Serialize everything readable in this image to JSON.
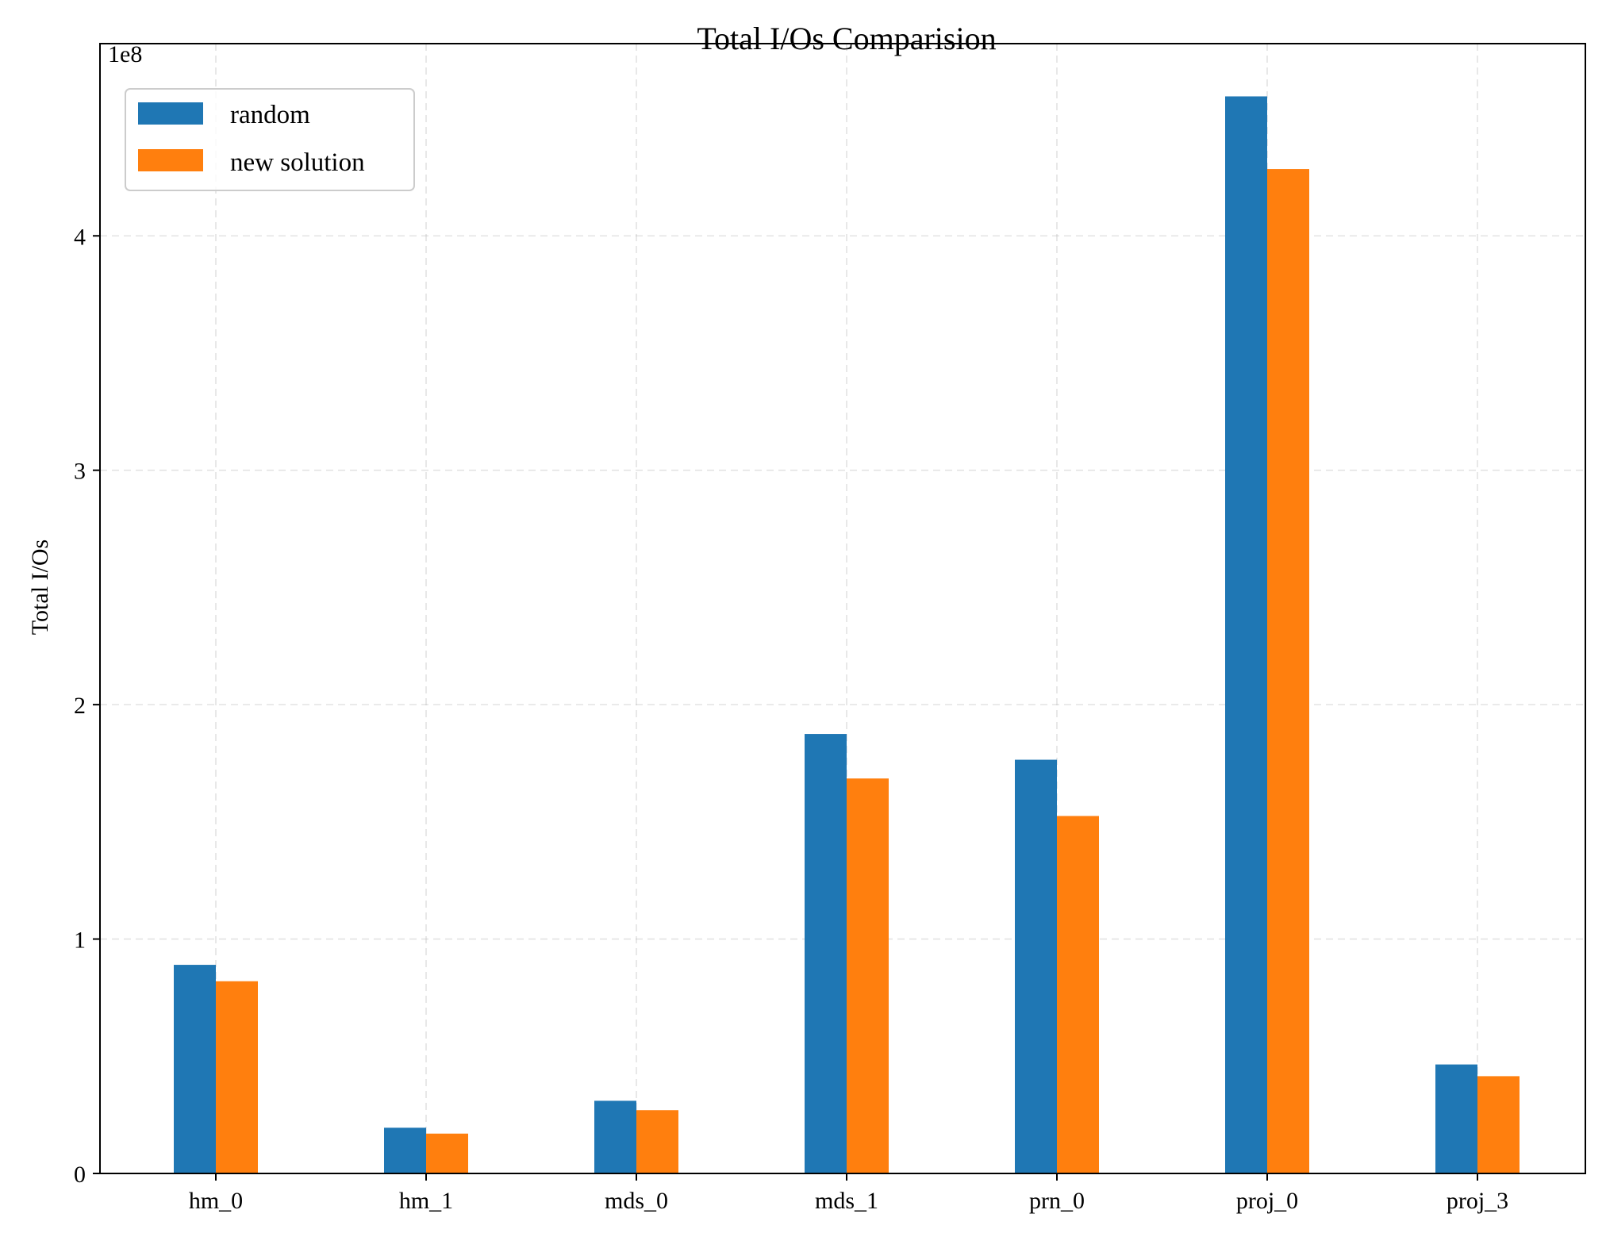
{
  "chart_data": {
    "type": "bar",
    "title": "Total I/Os Comparision",
    "xlabel": "",
    "ylabel": "Total I/Os",
    "offset_label": "1e8",
    "scale": 100000000,
    "categories": [
      "hm_0",
      "hm_1",
      "mds_0",
      "mds_1",
      "prn_0",
      "proj_0",
      "proj_3"
    ],
    "series": [
      {
        "name": "random",
        "color": "#1f77b4",
        "values": [
          89000000,
          19500000,
          31000000,
          187500000,
          176500000,
          459500000,
          46500000
        ]
      },
      {
        "name": "new solution",
        "color": "#ff7f0e",
        "values": [
          82000000,
          17000000,
          27000000,
          168500000,
          152500000,
          428500000,
          41500000
        ]
      }
    ],
    "ylim": [
      0,
      482000000
    ],
    "yticks": [
      0,
      100000000,
      200000000,
      300000000,
      400000000
    ],
    "ytick_labels": [
      "0",
      "1",
      "2",
      "3",
      "4"
    ],
    "grid": true,
    "legend_position": "top-left"
  }
}
